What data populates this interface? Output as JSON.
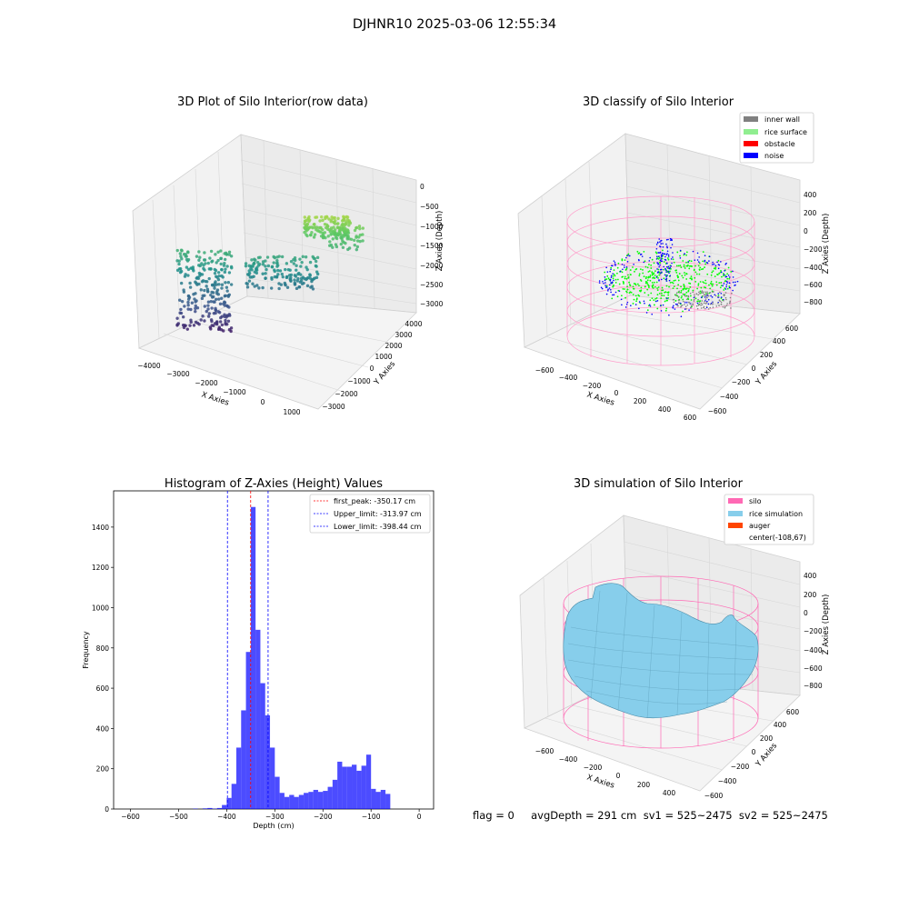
{
  "suptitle": "DJHNR10 2025-03-06 12:55:34",
  "status_line": "flag = 0     avgDepth = 291 cm  sv1 = 525~2475  sv2 = 525~2475",
  "chart_data": [
    {
      "type": "scatter3d",
      "title": "3D Plot of Silo Interior(row data)",
      "xlabel": "X Axies",
      "ylabel": "Y Axies",
      "zlabel": "Z Axies (Depth)",
      "x_ticks": [
        "−4000",
        "−3000",
        "−2000",
        "−1000",
        "0",
        "1000"
      ],
      "y_ticks": [
        "−3000",
        "−2000",
        "−1000",
        "0",
        "1000",
        "2000",
        "3000",
        "4000"
      ],
      "z_ticks": [
        "−3000",
        "−2500",
        "−2000",
        "−1500",
        "−1000",
        "−500",
        "0"
      ],
      "colormap": "viridis",
      "grid": true
    },
    {
      "type": "scatter3d",
      "title": "3D classify of Silo Interior",
      "xlabel": "X Axies",
      "ylabel": "Y Axies",
      "zlabel": "Z Axies (Depth)",
      "x_ticks": [
        "−600",
        "−400",
        "−200",
        "0",
        "200",
        "400",
        "600"
      ],
      "y_ticks": [
        "−600",
        "−400",
        "−200",
        "0",
        "200",
        "400",
        "600"
      ],
      "z_ticks": [
        "−800",
        "−600",
        "−400",
        "−200",
        "0",
        "200",
        "400"
      ],
      "legend": [
        {
          "label": "inner wall",
          "color": "#808080"
        },
        {
          "label": "rice surface",
          "color": "#90ee90"
        },
        {
          "label": "obstacle",
          "color": "#ff0000"
        },
        {
          "label": "noise",
          "color": "#0000ff"
        }
      ],
      "legend_position": "top-right",
      "grid": true
    },
    {
      "type": "bar",
      "title": "Histogram of Z-Axies (Height) Values",
      "xlabel": "Depth (cm)",
      "ylabel": "Frequency",
      "xlim": [
        -635,
        30
      ],
      "ylim": [
        0,
        1580
      ],
      "x_ticks": [
        -600,
        -500,
        -400,
        -300,
        -200,
        -100,
        0
      ],
      "y_ticks": [
        0,
        200,
        400,
        600,
        800,
        1000,
        1200,
        1400
      ],
      "bin_width": 10,
      "bin_starts": [
        -470,
        -460,
        -450,
        -440,
        -430,
        -420,
        -410,
        -400,
        -390,
        -380,
        -370,
        -360,
        -350,
        -340,
        -330,
        -320,
        -310,
        -300,
        -290,
        -280,
        -270,
        -260,
        -250,
        -240,
        -230,
        -220,
        -210,
        -200,
        -190,
        -180,
        -170,
        -160,
        -150,
        -140,
        -130,
        -120,
        -110,
        -100,
        -90,
        -80,
        -70,
        -60,
        -50,
        -40,
        -30,
        -20,
        -10
      ],
      "counts": [
        2,
        0,
        3,
        5,
        2,
        5,
        20,
        55,
        125,
        305,
        490,
        780,
        1500,
        890,
        625,
        465,
        305,
        160,
        80,
        60,
        70,
        60,
        70,
        80,
        85,
        95,
        85,
        90,
        110,
        145,
        235,
        210,
        210,
        220,
        190,
        215,
        270,
        100,
        85,
        95,
        75,
        0,
        0,
        0,
        0,
        0,
        0
      ],
      "color": "#0000ff",
      "vlines": [
        {
          "label": "first_peak: -350.17 cm",
          "x": -350.17,
          "color": "#ff0000"
        },
        {
          "label": "Upper_limit: -313.97 cm",
          "x": -313.97,
          "color": "#0000ff"
        },
        {
          "label": "Lower_limit: -398.44 cm",
          "x": -398.44,
          "color": "#0000ff"
        }
      ],
      "legend_position": "top-right",
      "grid": false
    },
    {
      "type": "surface3d",
      "title": "3D simulation of Silo Interior",
      "xlabel": "X Axies",
      "ylabel": "Y Axies",
      "zlabel": "Z Axies (Depth)",
      "x_ticks": [
        "−600",
        "−400",
        "−200",
        "0",
        "200",
        "400"
      ],
      "y_ticks": [
        "−600",
        "−400",
        "−200",
        "0",
        "200",
        "400",
        "600"
      ],
      "z_ticks": [
        "−800",
        "−600",
        "−400",
        "−200",
        "0",
        "200",
        "400"
      ],
      "legend": [
        {
          "label": "silo",
          "color": "#ff69b4"
        },
        {
          "label": "rice simulation",
          "color": "#87ceeb"
        },
        {
          "label": "auger",
          "color": "#ff4500"
        },
        {
          "label": "center(-108,67)",
          "color": ""
        }
      ],
      "legend_position": "top-right",
      "grid": true
    }
  ]
}
